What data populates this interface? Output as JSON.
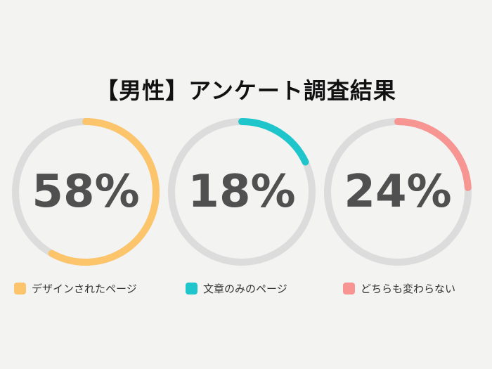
{
  "title": "【男性】アンケート調査結果",
  "colors": {
    "track": "#dcdcdc",
    "background": "#f3f3f2",
    "text": "#505050"
  },
  "chart_data": {
    "type": "pie",
    "title": "【男性】アンケート調査結果",
    "series": [
      {
        "name": "デザインされたページ",
        "value": 58,
        "label": "58%",
        "color": "#fcc46b"
      },
      {
        "name": "文章のみのページ",
        "value": 18,
        "label": "18%",
        "color": "#1ec6cc"
      },
      {
        "name": "どちらも変わらない",
        "value": 24,
        "label": "24%",
        "color": "#f79592"
      }
    ]
  }
}
